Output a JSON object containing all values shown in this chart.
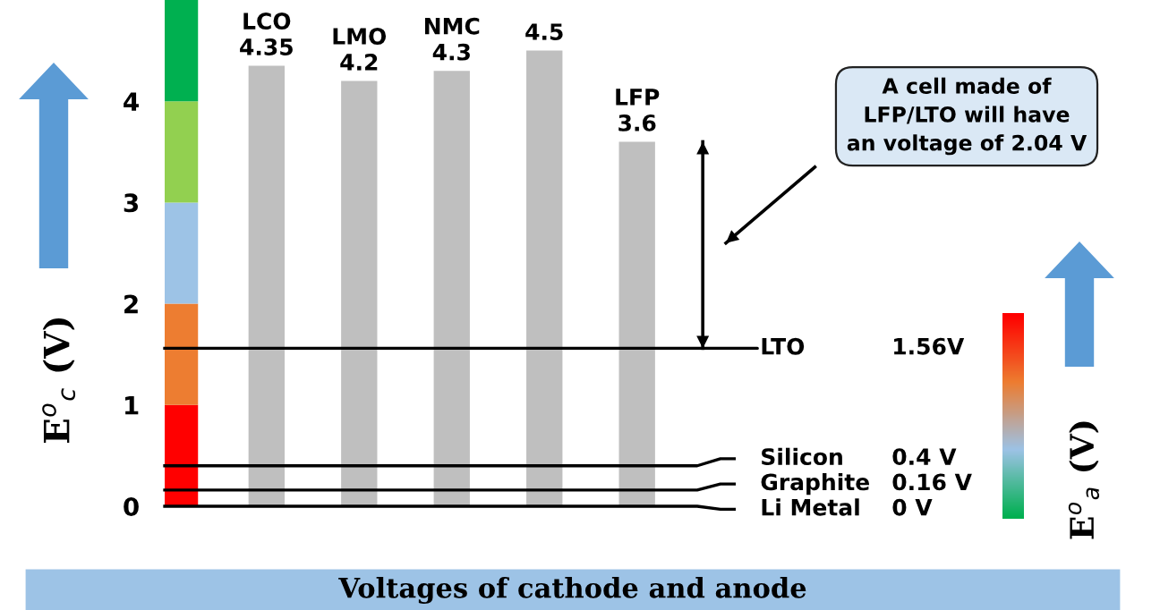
{
  "chart_data": {
    "type": "bar",
    "title": "Voltages of cathode and anode",
    "ylabel": "E$^{o}$$_{c}$ (V)",
    "categories": [
      "LCO",
      "LMO",
      "NMC",
      null,
      "LFP"
    ],
    "values": [
      4.35,
      4.2,
      4.3,
      4.5,
      3.6
    ],
    "color": "#bfbfbf",
    "data_labels": true,
    "ylim": [
      0,
      5
    ],
    "yticks": [
      0,
      1,
      2,
      3,
      4
    ],
    "tick_labels": "y",
    "grid": false,
    "legend": false,
    "bands": [
      {
        "axis": "y",
        "from": 0,
        "to": 1,
        "color": "#ff0000"
      },
      {
        "axis": "y",
        "from": 1,
        "to": 2,
        "color": "#ed7d31"
      },
      {
        "axis": "y",
        "from": 2,
        "to": 3,
        "color": "#9dc3e6"
      },
      {
        "axis": "y",
        "from": 3,
        "to": 4,
        "color": "#92d050"
      },
      {
        "axis": "y",
        "from": 4,
        "to": 5,
        "color": "#00b050"
      }
    ],
    "ref_lines": [
      {
        "axis": "y",
        "value": 1.56,
        "label": "LTO 1.56V",
        "color": "#000000"
      },
      {
        "axis": "y",
        "value": 0.4,
        "label": "Silicon 0.4 V",
        "color": "#000000"
      },
      {
        "axis": "y",
        "value": 0.16,
        "label": "Graphite 0.16 V",
        "color": "#000000"
      },
      {
        "axis": "y",
        "value": 0,
        "label": "Li Metal 0 V",
        "color": "#000000"
      }
    ],
    "annotations": [
      "A cell made of\nLFP/LTO will have\nan voltage of 2.04 V",
      "E$^{o}$$_{a}$ (V)"
    ]
  }
}
